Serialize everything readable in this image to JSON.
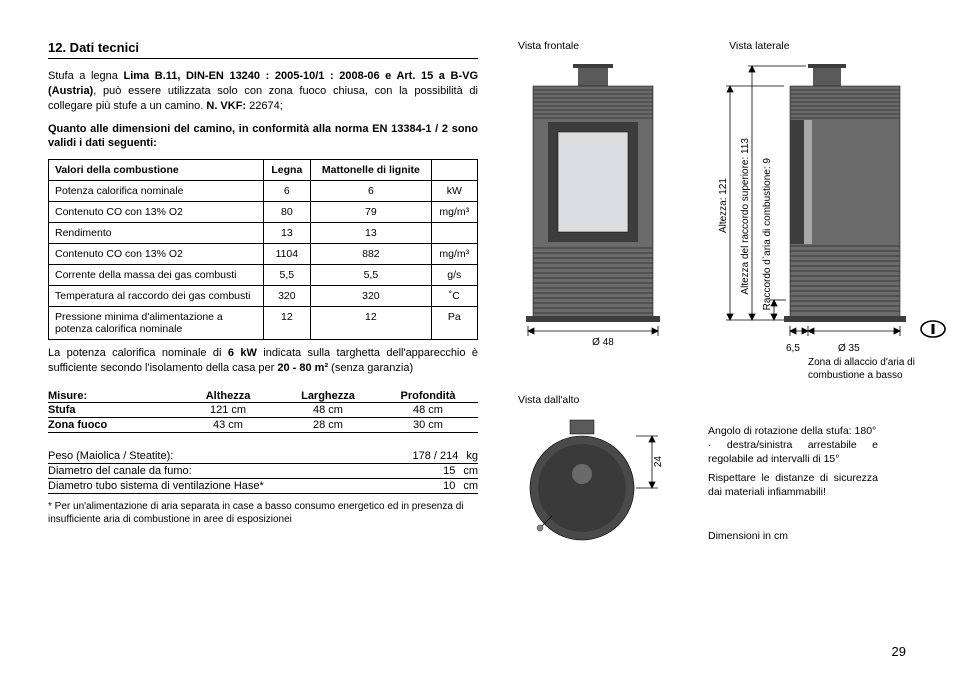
{
  "heading": "12.  Dati tecnici",
  "intro": {
    "pre": "Stufa a legna ",
    "bold1": "Lima B.11, DIN-EN 13240 : 2005-10/1 : 2008-06 e Art. 15 a B-VG (Austria)",
    "mid": ", può essere utilizzata solo con zona fuoco chiusa, con la possibilità di collegare più stufe a un camino. ",
    "bold2": "N. VKF:",
    "end": " 22674;"
  },
  "note_bold": "Quanto alle dimensioni del camino, in conformità alla norma EN 13384-1 / 2 sono validi i dati seguenti:",
  "combustion": {
    "headers": [
      "Valori della combustione",
      "Legna",
      "Mattonelle di lignite",
      ""
    ],
    "rows": [
      [
        "Potenza calorifica nominale",
        "6",
        "6",
        "kW"
      ],
      [
        "Contenuto CO con 13% O2",
        "80",
        "79",
        "mg/m³"
      ],
      [
        "Rendimento",
        "13",
        "13",
        ""
      ],
      [
        "Contenuto CO con 13% O2",
        "1104",
        "882",
        "mg/m³"
      ],
      [
        "Corrente della massa dei gas combusti",
        "5,5",
        "5,5",
        "g/s"
      ],
      [
        "Temperatura al raccordo dei gas combusti",
        "320",
        "320",
        "˚C"
      ],
      [
        "Pressione minima d'alimentazione a potenza calorifica nominale",
        "12",
        "12",
        "Pa"
      ]
    ]
  },
  "post_table": {
    "a": "La potenza calorifica nominale di ",
    "b": "6 kW",
    "c": " indicata sulla targhetta dell'apparecchio è sufficiente secondo l'isolamento della casa per ",
    "d": "20 - 80 m²",
    "e": " (senza garanzia)"
  },
  "measures": {
    "head": [
      "Misure:",
      "Althezza",
      "Larghezza",
      "Profondità"
    ],
    "rows": [
      [
        "Stufa",
        "121 cm",
        "48 cm",
        "48 cm"
      ],
      [
        "Zona fuoco",
        "43 cm",
        "28 cm",
        "30 cm"
      ]
    ]
  },
  "specs": [
    {
      "label": "Peso (Maiolica / Steatite):",
      "val": "178 / 214",
      "unit": "kg"
    },
    {
      "label": "Diametro del canale da fumo:",
      "val": "15",
      "unit": "cm"
    },
    {
      "label": "Diametro tubo sistema di ventilazione Hase*",
      "val": "10",
      "unit": "cm"
    }
  ],
  "footnote": "* Per un'alimentazione di aria separata in case a basso consumo energetico ed in presenza di insufficiente aria di combustione in aree di esposizionei",
  "labels": {
    "front": "Vista frontale",
    "side": "Vista laterale",
    "top": "Vista dall'alto",
    "height": "Altezza: 121",
    "upper": "Altezza del raccordo superiore: 113",
    "airconn": "Raccordo d`aria di combustione: 9",
    "d48": "Ø 48",
    "d65": "6,5",
    "d35": "Ø 35",
    "zona": "Zona di allaccio d'aria di combustione a basso",
    "topdim": "24",
    "dimcm": "Dimensioni in cm"
  },
  "annot": {
    "l1": "Angolo di rotazione della stufa: 180°",
    "l2": "· destra/sinistra arrestabile e regolabile ad intervalli di 15°",
    "l3": "Rispettare le distanze di sicurezza dai materiali infiammabili!"
  },
  "pagenum": "29",
  "colors": {
    "stove_body": "#6b6b6b",
    "stove_dark": "#3d3d3d",
    "glass": "#d9dde0",
    "line": "#000000"
  }
}
